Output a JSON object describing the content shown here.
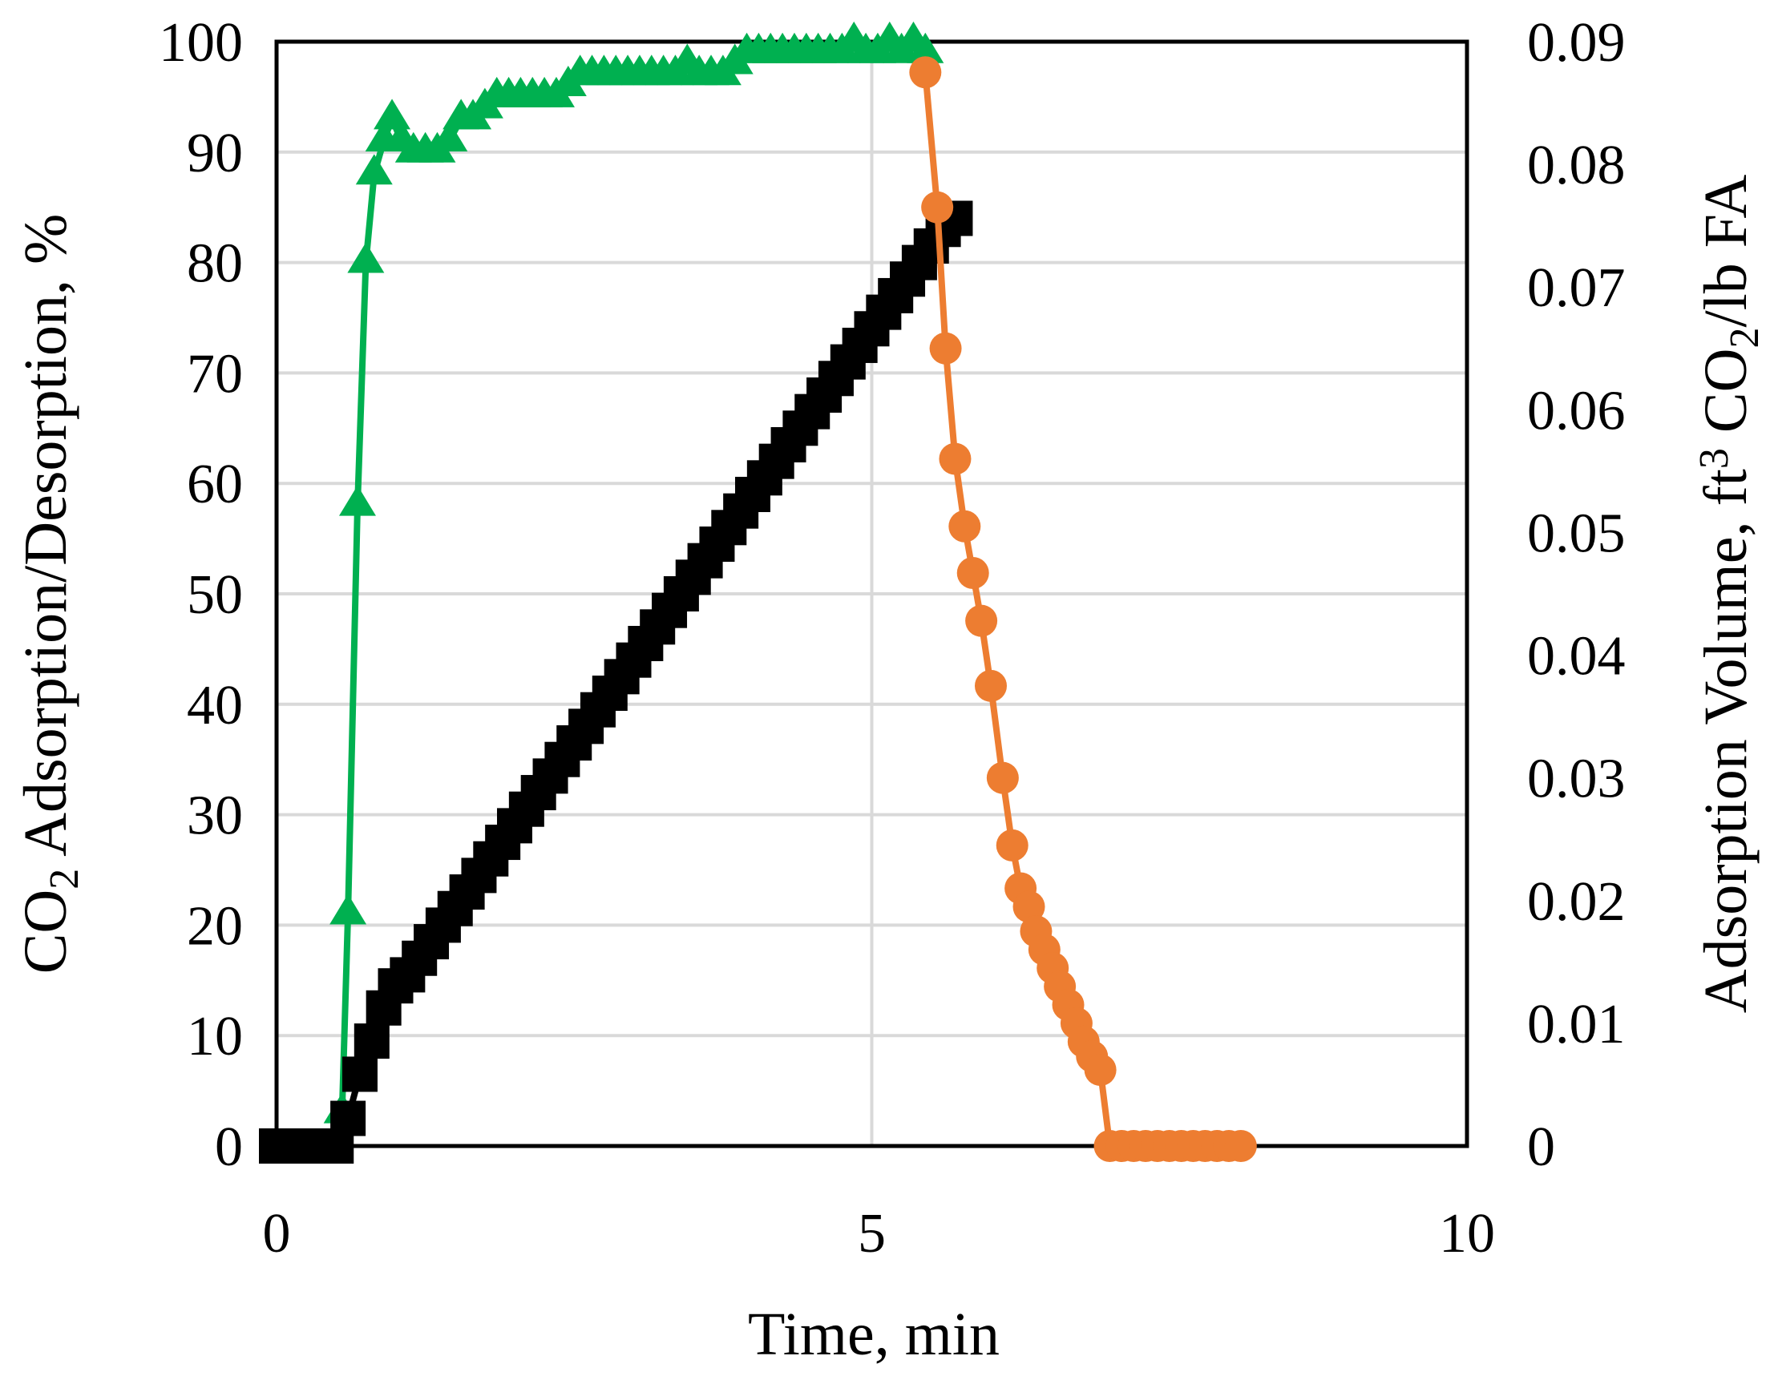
{
  "chart_data": {
    "type": "line",
    "title": "",
    "xlabel": "Time, min",
    "ylabel": {
      "prefix": "CO",
      "sub": "2",
      "suffix": " Adsorption/Desorption, %"
    },
    "y2label": {
      "prefix": "Adsorption Volume, ft",
      "sup": "3",
      "mid": " CO",
      "sub": "2",
      "suffix": "/lb FA"
    },
    "xlim": [
      0,
      10
    ],
    "ylim": [
      0,
      100
    ],
    "y2lim": [
      0,
      0.09
    ],
    "x_ticks": [
      "0",
      "5",
      "10"
    ],
    "y_ticks": [
      "0",
      "10",
      "20",
      "30",
      "40",
      "50",
      "60",
      "70",
      "80",
      "90",
      "100"
    ],
    "y2_ticks": [
      "0",
      "0.01",
      "0.02",
      "0.03",
      "0.04",
      "0.05",
      "0.06",
      "0.07",
      "0.08",
      "0.09"
    ],
    "grid": true,
    "legend": "none",
    "series": [
      {
        "axis": "left",
        "color": "#00b050",
        "marker": "triangle",
        "points": [
          [
            0.55,
            3
          ],
          [
            0.6,
            21
          ],
          [
            0.68,
            58
          ],
          [
            0.75,
            80
          ],
          [
            0.82,
            88
          ],
          [
            0.9,
            91
          ],
          [
            0.97,
            93
          ],
          [
            1.05,
            91
          ],
          [
            1.15,
            90
          ],
          [
            1.25,
            90
          ],
          [
            1.35,
            90
          ],
          [
            1.45,
            91
          ],
          [
            1.55,
            93
          ],
          [
            1.65,
            93
          ],
          [
            1.75,
            94
          ],
          [
            1.85,
            95
          ],
          [
            1.95,
            95
          ],
          [
            2.05,
            95
          ],
          [
            2.15,
            95
          ],
          [
            2.25,
            95
          ],
          [
            2.35,
            95
          ],
          [
            2.45,
            96
          ],
          [
            2.55,
            97
          ],
          [
            2.65,
            97
          ],
          [
            2.75,
            97
          ],
          [
            2.85,
            97
          ],
          [
            2.95,
            97
          ],
          [
            3.05,
            97
          ],
          [
            3.15,
            97
          ],
          [
            3.25,
            97
          ],
          [
            3.35,
            97
          ],
          [
            3.45,
            98
          ],
          [
            3.55,
            97
          ],
          [
            3.65,
            97
          ],
          [
            3.75,
            97
          ],
          [
            3.85,
            98
          ],
          [
            3.95,
            99
          ],
          [
            4.05,
            99
          ],
          [
            4.15,
            99
          ],
          [
            4.25,
            99
          ],
          [
            4.35,
            99
          ],
          [
            4.45,
            99
          ],
          [
            4.55,
            99
          ],
          [
            4.65,
            99
          ],
          [
            4.75,
            99
          ],
          [
            4.85,
            100
          ],
          [
            4.95,
            99
          ],
          [
            5.05,
            99
          ],
          [
            5.15,
            100
          ],
          [
            5.25,
            99
          ],
          [
            5.35,
            100
          ],
          [
            5.45,
            99
          ]
        ]
      },
      {
        "axis": "left",
        "color": "#000000",
        "marker": "square",
        "points": [
          [
            0.0,
            0
          ],
          [
            0.1,
            0
          ],
          [
            0.2,
            0
          ],
          [
            0.3,
            0
          ],
          [
            0.4,
            0
          ],
          [
            0.5,
            0
          ],
          [
            0.6,
            2.5
          ],
          [
            0.7,
            6.5
          ],
          [
            0.8,
            9.5
          ],
          [
            0.9,
            12.5
          ],
          [
            1.0,
            14.5
          ],
          [
            1.1,
            15.5
          ],
          [
            1.2,
            17
          ],
          [
            1.3,
            18.5
          ],
          [
            1.4,
            20
          ],
          [
            1.5,
            21.5
          ],
          [
            1.6,
            23
          ],
          [
            1.7,
            24.5
          ],
          [
            1.8,
            26
          ],
          [
            1.9,
            27.5
          ],
          [
            2.0,
            29
          ],
          [
            2.1,
            30.5
          ],
          [
            2.2,
            32
          ],
          [
            2.3,
            33.5
          ],
          [
            2.4,
            35
          ],
          [
            2.5,
            36.5
          ],
          [
            2.6,
            38
          ],
          [
            2.7,
            39.5
          ],
          [
            2.8,
            41
          ],
          [
            2.9,
            42.5
          ],
          [
            3.0,
            44
          ],
          [
            3.1,
            45.5
          ],
          [
            3.2,
            47
          ],
          [
            3.3,
            48.5
          ],
          [
            3.4,
            50
          ],
          [
            3.5,
            51.5
          ],
          [
            3.6,
            53
          ],
          [
            3.7,
            54.5
          ],
          [
            3.8,
            56
          ],
          [
            3.9,
            57.5
          ],
          [
            4.0,
            59
          ],
          [
            4.1,
            60.5
          ],
          [
            4.2,
            62
          ],
          [
            4.3,
            63.5
          ],
          [
            4.4,
            65
          ],
          [
            4.5,
            66.5
          ],
          [
            4.6,
            68
          ],
          [
            4.7,
            69.5
          ],
          [
            4.8,
            71
          ],
          [
            4.9,
            72.5
          ],
          [
            5.0,
            74
          ],
          [
            5.1,
            75.5
          ],
          [
            5.2,
            77
          ],
          [
            5.3,
            78.5
          ],
          [
            5.4,
            80
          ],
          [
            5.5,
            81.5
          ],
          [
            5.6,
            83
          ],
          [
            5.7,
            84
          ]
        ]
      },
      {
        "axis": "right",
        "color": "#ed7d31",
        "marker": "circle",
        "points": [
          [
            5.45,
            0.0875
          ],
          [
            5.55,
            0.0765
          ],
          [
            5.62,
            0.065
          ],
          [
            5.7,
            0.056
          ],
          [
            5.78,
            0.0505
          ],
          [
            5.85,
            0.0467
          ],
          [
            5.92,
            0.0428
          ],
          [
            6.0,
            0.0375
          ],
          [
            6.1,
            0.03
          ],
          [
            6.18,
            0.0245
          ],
          [
            6.25,
            0.021
          ],
          [
            6.32,
            0.0195
          ],
          [
            6.38,
            0.0175
          ],
          [
            6.45,
            0.016
          ],
          [
            6.52,
            0.0145
          ],
          [
            6.58,
            0.013
          ],
          [
            6.65,
            0.0115
          ],
          [
            6.72,
            0.01
          ],
          [
            6.78,
            0.0085
          ],
          [
            6.85,
            0.0073
          ],
          [
            6.92,
            0.0062
          ],
          [
            7.0,
            0
          ],
          [
            7.1,
            0
          ],
          [
            7.2,
            0
          ],
          [
            7.3,
            0
          ],
          [
            7.4,
            0
          ],
          [
            7.5,
            0
          ],
          [
            7.6,
            0
          ],
          [
            7.7,
            0
          ],
          [
            7.8,
            0
          ],
          [
            7.9,
            0
          ],
          [
            8.0,
            0
          ],
          [
            8.1,
            0
          ]
        ]
      }
    ]
  }
}
